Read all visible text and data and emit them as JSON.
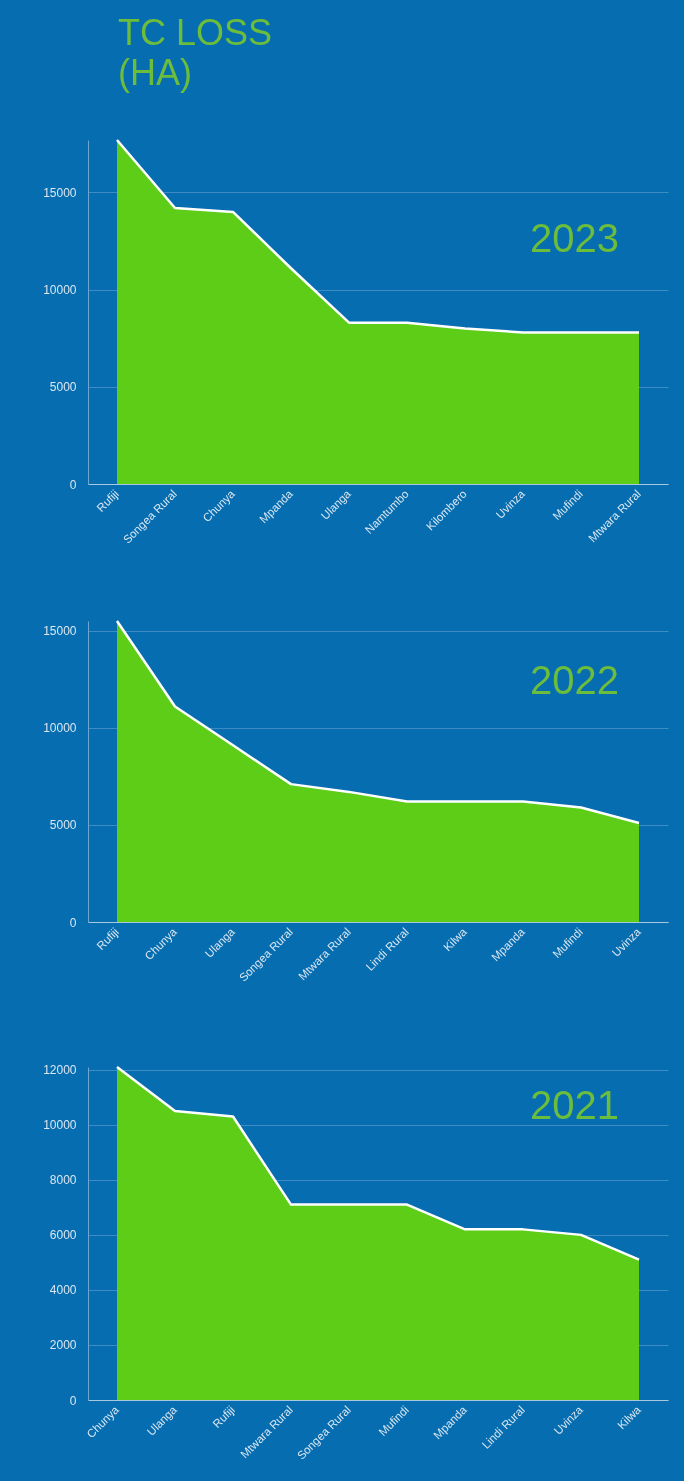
{
  "chart_data": [
    {
      "type": "area",
      "title": "TC LOSS (HA)",
      "annotations": [
        "2023"
      ],
      "categories": [
        "Rufiji",
        "Songea Rural",
        "Chunya",
        "Mpanda",
        "Ulanga",
        "Namtumbo",
        "Kilombero",
        "Uvinza",
        "Mufindi",
        "Mtwara Rural"
      ],
      "series": [
        {
          "color": "#5ecd18",
          "values": [
            17700,
            14200,
            14000,
            11100,
            8300,
            8300,
            8000,
            7800,
            7800,
            7800
          ]
        }
      ],
      "ylim": [
        0,
        17700
      ],
      "yticks": [
        0,
        5000,
        10000,
        15000
      ],
      "grid": "y"
    },
    {
      "type": "area",
      "annotations": [
        "2022"
      ],
      "categories": [
        "Rufiji",
        "Chunya",
        "Ulanga",
        "Songea Rural",
        "Mtwara Rural",
        "Lindi Rural",
        "Kilwa",
        "Mpanda",
        "Mufindi",
        "Uvinza"
      ],
      "series": [
        {
          "color": "#5ecd18",
          "values": [
            15500,
            11100,
            9100,
            7100,
            6700,
            6200,
            6200,
            6200,
            5900,
            5100
          ]
        }
      ],
      "ylim": [
        0,
        15500
      ],
      "yticks": [
        0,
        5000,
        10000,
        15000
      ],
      "grid": "y"
    },
    {
      "type": "area",
      "annotations": [
        "2021"
      ],
      "categories": [
        "Chunya",
        "Ulanga",
        "Rufiji",
        "Mtwara Rural",
        "Songea Rural",
        "Mufindi",
        "Mpanda",
        "Lindi Rural",
        "Uvinza",
        "Kilwa"
      ],
      "series": [
        {
          "color": "#5ecd18",
          "values": [
            12100,
            10500,
            10300,
            7100,
            7100,
            7100,
            6200,
            6200,
            6000,
            5100
          ]
        }
      ],
      "ylim": [
        0,
        12100
      ],
      "yticks": [
        0,
        2000,
        4000,
        6000,
        8000,
        10000,
        12000
      ],
      "grid": "y"
    }
  ]
}
